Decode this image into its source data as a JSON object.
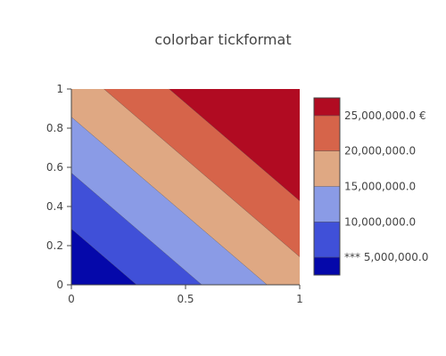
{
  "chart_data": {
    "type": "contour",
    "title": "colorbar tickformat",
    "xlabel": "",
    "ylabel": "",
    "xlim": [
      0,
      1
    ],
    "ylim": [
      0,
      1
    ],
    "x_ticks": [
      "0",
      "0.5",
      "1"
    ],
    "y_ticks": [
      "0",
      "0.2",
      "0.4",
      "0.6",
      "0.8",
      "1"
    ],
    "field": {
      "z_at_origin": 0,
      "z_per_x": 17500000,
      "z_per_y": 17500000
    },
    "contour_levels": [
      0,
      5000000,
      10000000,
      15000000,
      20000000,
      25000000,
      30000000
    ],
    "level_colors": [
      "#0508aa",
      "#4050d8",
      "#8a9be6",
      "#dfa883",
      "#d6644a",
      "#b10b22"
    ],
    "colorbar": {
      "min": 2500000,
      "max": 27500000,
      "ticks": [
        {
          "value": 5000000,
          "label": "*** 5,000,000.0"
        },
        {
          "value": 10000000,
          "label": "10,000,000.0"
        },
        {
          "value": 15000000,
          "label": "15,000,000.0"
        },
        {
          "value": 20000000,
          "label": "20,000,000.0"
        },
        {
          "value": 25000000,
          "label": "25,000,000.0 €"
        }
      ]
    }
  }
}
